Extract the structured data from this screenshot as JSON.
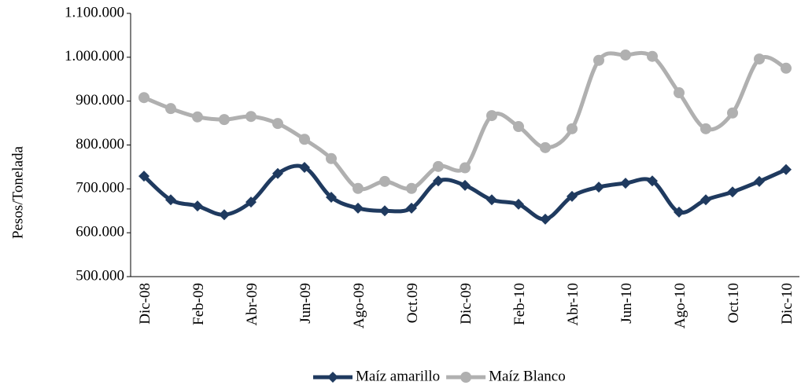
{
  "chart_data": {
    "type": "line",
    "y_label": "Pesos/Tonelada",
    "categories": [
      "Dic-08",
      null,
      "Feb-09",
      null,
      "Abr-09",
      null,
      "Jun-09",
      null,
      "Ago-09",
      null,
      "Oct.09",
      null,
      "Dic-09",
      null,
      "Feb-10",
      null,
      "Abr-10",
      null,
      "Jun-10",
      null,
      "Ago-10",
      null,
      "Oct.10",
      null,
      "Dic-10"
    ],
    "series": [
      {
        "name": "Maíz amarillo",
        "color": "#1f3a5f",
        "marker": "diamond",
        "values": [
          729000,
          675000,
          661000,
          641000,
          670000,
          735000,
          749000,
          681000,
          656000,
          650000,
          656000,
          718000,
          708000,
          675000,
          665000,
          631000,
          683000,
          704000,
          713000,
          718000,
          647000,
          675000,
          693000,
          717000,
          744000
        ]
      },
      {
        "name": "Maíz Blanco",
        "color": "#b0b0b0",
        "marker": "circle",
        "values": [
          908000,
          883000,
          864000,
          858000,
          865000,
          849000,
          813000,
          769000,
          701000,
          717000,
          701000,
          751000,
          748000,
          867000,
          842000,
          794000,
          837000,
          993000,
          1005000,
          1002000,
          919000,
          837000,
          873000,
          996000,
          975000
        ]
      }
    ],
    "ylim": [
      500000,
      1100000
    ],
    "yticks": [
      {
        "value": 500000,
        "label": "500.000"
      },
      {
        "value": 600000,
        "label": "600.000"
      },
      {
        "value": 700000,
        "label": "700.000"
      },
      {
        "value": 800000,
        "label": "800.000"
      },
      {
        "value": 900000,
        "label": "900.000"
      },
      {
        "value": 1000000,
        "label": "1.000.000"
      },
      {
        "value": 1100000,
        "label": "1.100.000"
      }
    ],
    "grid": false,
    "smooth": true,
    "legend": "bottom"
  }
}
